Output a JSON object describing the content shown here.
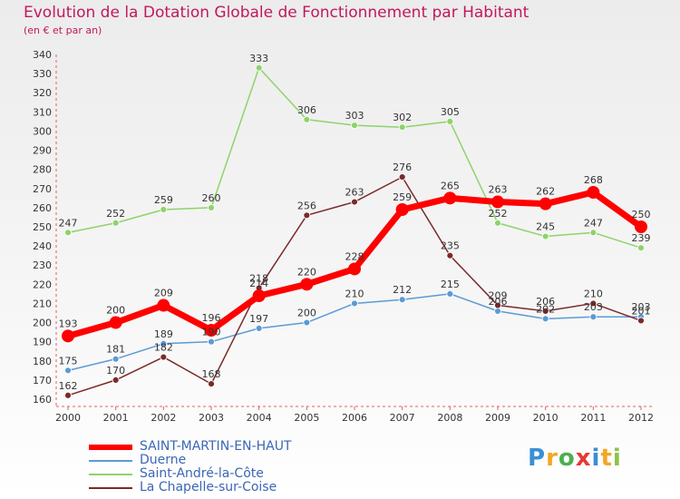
{
  "title": "Evolution de la Dotation Globale de Fonctionnement par Habitant",
  "subtitle": "(en € et par an)",
  "logo": {
    "letters": [
      "P",
      "r",
      "o",
      "x",
      "i",
      "t",
      "i"
    ]
  },
  "chart_data": {
    "type": "line",
    "title": "Evolution de la Dotation Globale de Fonctionnement par Habitant",
    "ylabel": "(en € et par an)",
    "xlabel": "",
    "categories": [
      "2000",
      "2001",
      "2002",
      "2003",
      "2004",
      "2005",
      "2006",
      "2007",
      "2008",
      "2009",
      "2010",
      "2011",
      "2012"
    ],
    "ylim": [
      160,
      340
    ],
    "yticks": [
      "160",
      "170",
      "180",
      "190",
      "200",
      "210",
      "220",
      "230",
      "240",
      "250",
      "260",
      "270",
      "280",
      "290",
      "300",
      "310",
      "320",
      "330",
      "340"
    ],
    "grid": false,
    "legend_position": "bottom-left",
    "series": [
      {
        "name": "SAINT-MARTIN-EN-HAUT",
        "color": "#ff0000",
        "emphasis": true,
        "values": [
          193,
          200,
          209,
          196,
          214,
          220,
          228,
          259,
          265,
          263,
          262,
          268,
          250
        ],
        "labels": [
          "193",
          "200",
          "209",
          "196",
          "214",
          "220",
          "228",
          "259",
          "265",
          "263",
          "262",
          "268",
          "250"
        ]
      },
      {
        "name": "Duerne",
        "color": "#5b9bd5",
        "emphasis": false,
        "values": [
          175,
          181,
          189,
          190,
          197,
          200,
          210,
          212,
          215,
          206,
          202,
          203,
          203
        ],
        "labels": [
          "175",
          "181",
          "189",
          "190",
          "197",
          "200",
          "210",
          "212",
          "215",
          "206",
          "202",
          "203",
          "203"
        ]
      },
      {
        "name": "Saint-André-la-Côte",
        "color": "#8ed36a",
        "emphasis": false,
        "values": [
          247,
          252,
          259,
          260,
          333,
          306,
          303,
          302,
          305,
          252,
          245,
          247,
          239
        ],
        "labels": [
          "247",
          "252",
          "259",
          "260",
          "333",
          "306",
          "303",
          "302",
          "305",
          "252",
          "245",
          "247",
          "239"
        ]
      },
      {
        "name": "La Chapelle-sur-Coise",
        "color": "#7b2a2a",
        "emphasis": false,
        "values": [
          162,
          170,
          182,
          168,
          218,
          256,
          263,
          276,
          235,
          209,
          206,
          210,
          201
        ],
        "labels": [
          "162",
          "170",
          "182",
          "168",
          "218",
          "256",
          "263",
          "276",
          "235",
          "209",
          "206",
          "210",
          "201"
        ]
      }
    ]
  }
}
